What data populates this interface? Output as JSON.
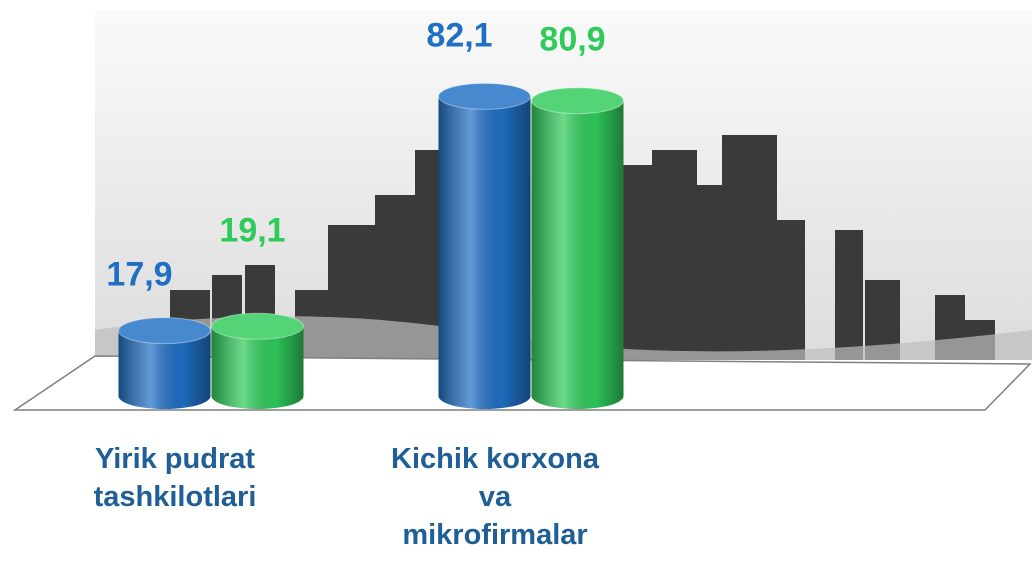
{
  "chart_data": {
    "type": "bar3d",
    "categories": [
      "Yirik pudrat\ntashkilotlari",
      "Kichik korxona\nva\nmikrofirmalar"
    ],
    "series": [
      {
        "color": "#1f6fc4",
        "values": [
          17.9,
          82.1
        ],
        "value_labels": [
          "17,9",
          "82,1"
        ]
      },
      {
        "color": "#2fcb5a",
        "values": [
          19.1,
          80.9
        ],
        "value_labels": [
          "19,1",
          "80,9"
        ]
      }
    ]
  }
}
